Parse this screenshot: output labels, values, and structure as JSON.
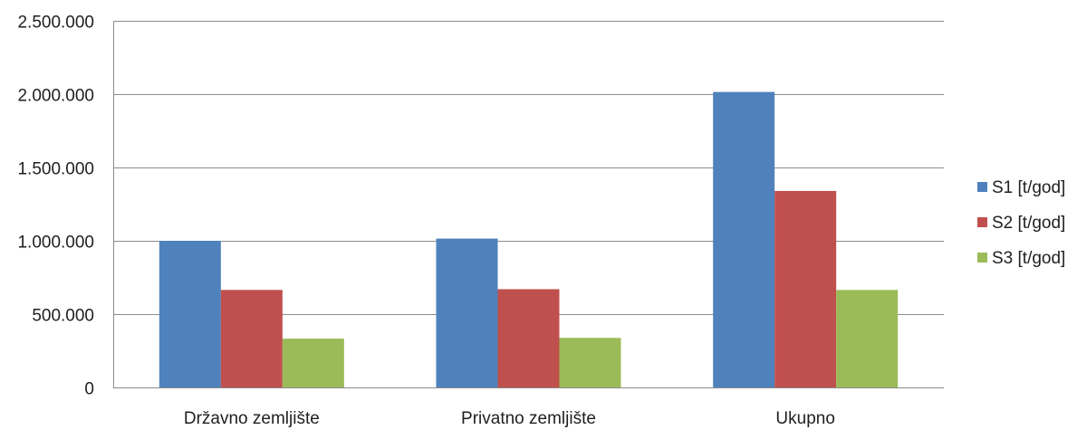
{
  "chart_data": {
    "type": "bar",
    "title": "",
    "xlabel": "",
    "ylabel": "",
    "categories": [
      "Državno zemljište",
      "Privatno zemljište",
      "Ukupno"
    ],
    "series": [
      {
        "name": "S1 [t/god]",
        "color": "#4F81BD",
        "values": [
          1000000,
          1015000,
          2015000
        ]
      },
      {
        "name": "S2 [t/god]",
        "color": "#C0504D",
        "values": [
          665000,
          670000,
          1340000
        ]
      },
      {
        "name": "S3 [t/god]",
        "color": "#9BBB59",
        "values": [
          333000,
          338000,
          665000
        ]
      }
    ],
    "ylim": [
      0,
      2500000
    ],
    "yticks": [
      0,
      500000,
      1000000,
      1500000,
      2000000,
      2500000
    ],
    "ytick_labels": [
      "0",
      "500.000",
      "1.000.000",
      "1.500.000",
      "2.000.000",
      "2.500.000"
    ],
    "grid": true,
    "legend_position": "right"
  }
}
